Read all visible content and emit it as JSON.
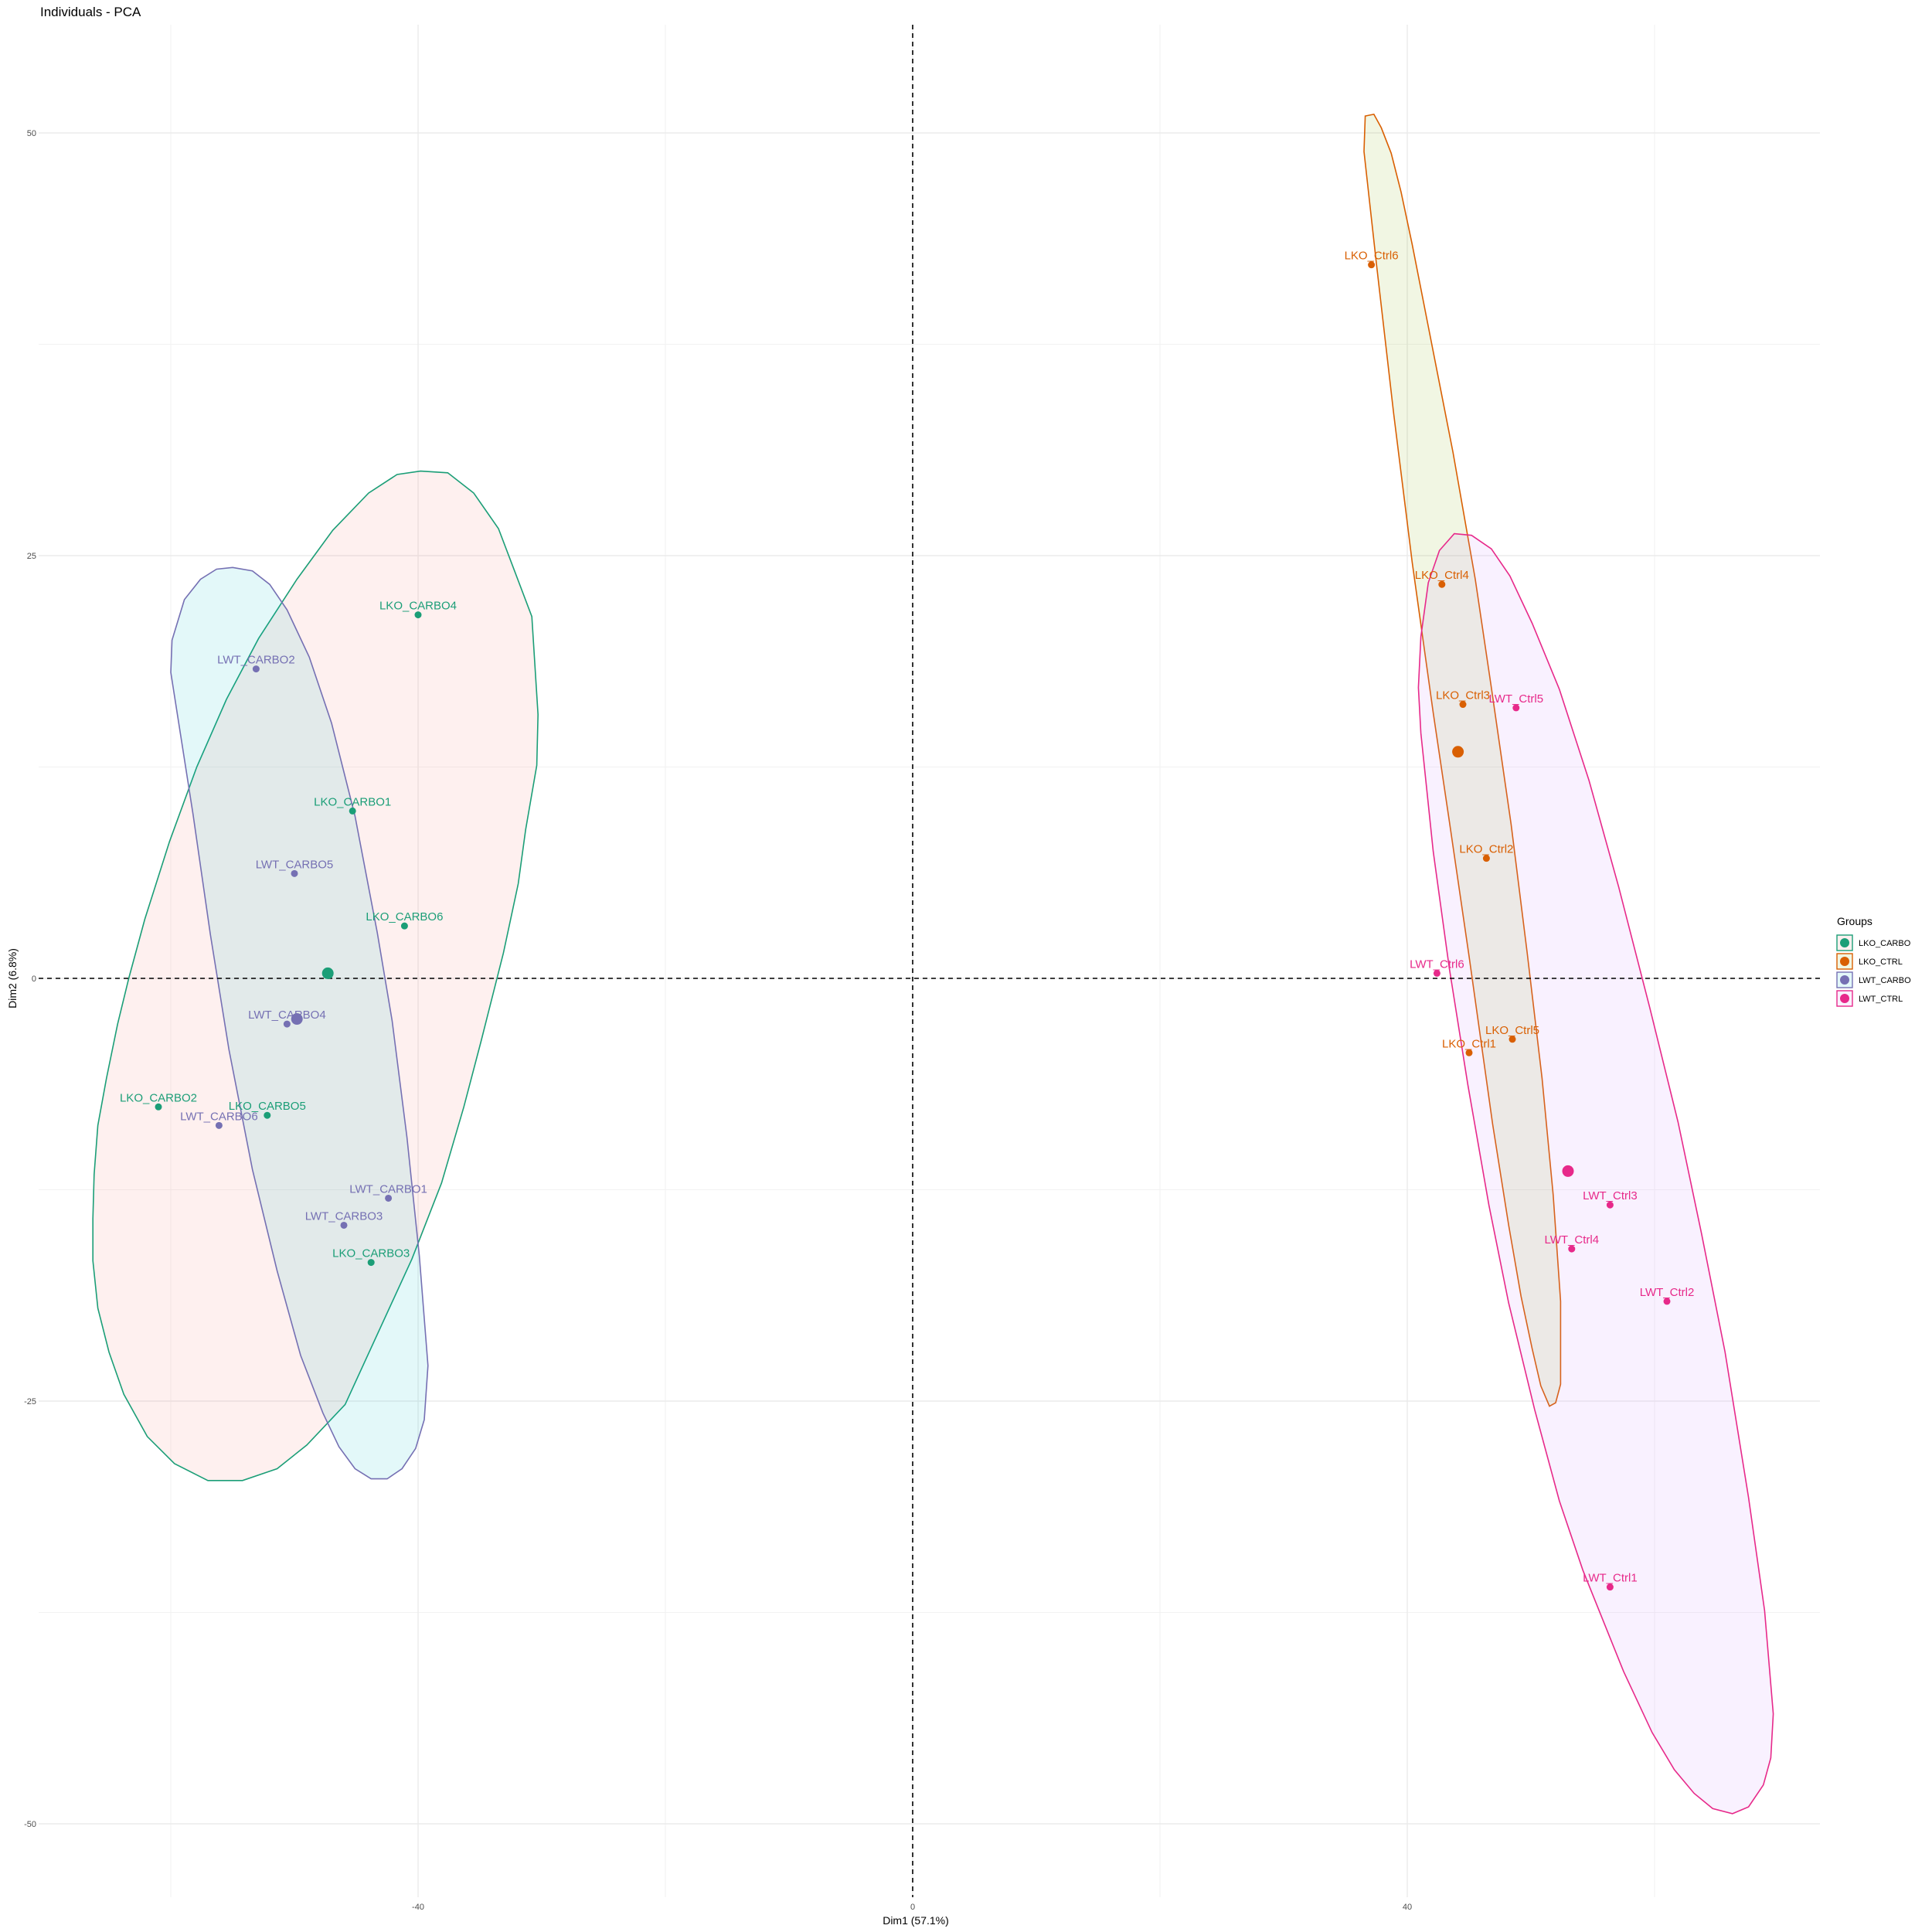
{
  "chart_data": {
    "type": "scatter",
    "title": "Individuals - PCA",
    "xlabel": "Dim1 (57.1%)",
    "ylabel": "Dim2 (6.8%)",
    "xlim": [
      -70,
      74
    ],
    "ylim": [
      -56,
      56
    ],
    "x_ticks": [
      -40,
      0,
      40
    ],
    "y_ticks": [
      50,
      25,
      0,
      -25,
      -50
    ],
    "x_tick_labels": [
      "-40",
      "0",
      "40"
    ],
    "y_tick_labels": [
      "50",
      "25",
      "0",
      "-25",
      "-50"
    ],
    "grid": true,
    "reference_lines": {
      "x": 0,
      "y": 0,
      "style": "dashed"
    },
    "legend": {
      "title": "Groups",
      "position": "right"
    },
    "series": [
      {
        "name": "LKO_CARBO",
        "color": "#1B9E77",
        "fill": "#F8766D",
        "points": [
          {
            "label": "LKO_CARBO4",
            "x": -40,
            "y": 21.5
          },
          {
            "label": "LKO_CARBO1",
            "x": -45.3,
            "y": 9.9
          },
          {
            "label": "LKO_CARBO6",
            "x": -41.1,
            "y": 3.1
          },
          {
            "label": "LKO_CARBO2",
            "x": -61,
            "y": -7.6
          },
          {
            "label": "LKO_CARBO5",
            "x": -52.2,
            "y": -8.1
          },
          {
            "label": "LKO_CARBO3",
            "x": -43.8,
            "y": -16.8
          }
        ],
        "centroid": {
          "x": -47.3,
          "y": 0.3
        },
        "ellipse": [
          [
            -39.8,
            30
          ],
          [
            -37.6,
            29.9
          ],
          [
            -35.5,
            28.7
          ],
          [
            -33.5,
            26.6
          ],
          [
            -32.2,
            24.1
          ],
          [
            -30.8,
            21.4
          ],
          [
            -30.3,
            15.6
          ],
          [
            -30.4,
            12.6
          ],
          [
            -31.3,
            8.8
          ],
          [
            -31.9,
            5.6
          ],
          [
            -33.1,
            1.5
          ],
          [
            -34.9,
            -3.7
          ],
          [
            -36.3,
            -7.6
          ],
          [
            -38.1,
            -12.1
          ],
          [
            -40.5,
            -16.6
          ],
          [
            -45.9,
            -25.2
          ],
          [
            -49,
            -27.6
          ],
          [
            -51.4,
            -29
          ],
          [
            -54.2,
            -29.7
          ],
          [
            -57,
            -29.7
          ],
          [
            -59.7,
            -28.7
          ],
          [
            -61.9,
            -27.1
          ],
          [
            -63.8,
            -24.6
          ],
          [
            -65,
            -22.1
          ],
          [
            -65.9,
            -19.5
          ],
          [
            -66.3,
            -16.7
          ],
          [
            -66.3,
            -14.2
          ],
          [
            -66.2,
            -11.6
          ],
          [
            -65.9,
            -8.7
          ],
          [
            -65.2,
            -5.9
          ],
          [
            -64.3,
            -2.7
          ],
          [
            -63.4,
            0
          ],
          [
            -62.1,
            3.5
          ],
          [
            -60.1,
            8.1
          ],
          [
            -57.9,
            12.5
          ],
          [
            -55.5,
            16.5
          ],
          [
            -52.9,
            20.1
          ],
          [
            -49.8,
            23.6
          ],
          [
            -46.9,
            26.5
          ],
          [
            -44,
            28.7
          ],
          [
            -41.7,
            29.8
          ]
        ]
      },
      {
        "name": "LKO_CTRL",
        "color": "#D95F02",
        "fill": "#7CAE00",
        "points": [
          {
            "label": "LKO_Ctrl6",
            "x": 37.1,
            "y": 42.2
          },
          {
            "label": "LKO_Ctrl4",
            "x": 42.8,
            "y": 23.3
          },
          {
            "label": "LKO_Ctrl3",
            "x": 44.5,
            "y": 16.2
          },
          {
            "label": "LKO_Ctrl2",
            "x": 46.4,
            "y": 7.1
          },
          {
            "label": "LKO_Ctrl5",
            "x": 48.5,
            "y": -3.6
          },
          {
            "label": "LKO_Ctrl1",
            "x": 45,
            "y": -4.4
          }
        ],
        "centroid": {
          "x": 44.1,
          "y": 13.4
        },
        "ellipse": [
          [
            36.6,
            51
          ],
          [
            37.3,
            51.1
          ],
          [
            37.9,
            50.3
          ],
          [
            38.7,
            48.8
          ],
          [
            39.5,
            46.5
          ],
          [
            40.4,
            43.4
          ],
          [
            41.5,
            39.3
          ],
          [
            43.7,
            31.1
          ],
          [
            45.5,
            23.6
          ],
          [
            46.8,
            17.2
          ],
          [
            48.4,
            9.1
          ],
          [
            49.7,
            1.5
          ],
          [
            50.9,
            -5.9
          ],
          [
            51.8,
            -12.8
          ],
          [
            52.4,
            -19.1
          ],
          [
            52.4,
            -24
          ],
          [
            52,
            -25.1
          ],
          [
            51.5,
            -25.3
          ],
          [
            50.8,
            -24.1
          ],
          [
            50.1,
            -21.9
          ],
          [
            49.2,
            -18.8
          ],
          [
            48.2,
            -14.6
          ],
          [
            46.9,
            -8.6
          ],
          [
            45,
            1.3
          ],
          [
            43.4,
            9.3
          ],
          [
            42.1,
            15.7
          ],
          [
            40.4,
            24.6
          ],
          [
            38.9,
            33.4
          ],
          [
            37.5,
            42.3
          ],
          [
            36.5,
            48.9
          ]
        ]
      },
      {
        "name": "LWT_CARBO",
        "color": "#7570B3",
        "fill": "#00BFC4",
        "points": [
          {
            "label": "LWT_CARBO2",
            "x": -53.1,
            "y": 18.3
          },
          {
            "label": "LWT_CARBO5",
            "x": -50,
            "y": 6.2
          },
          {
            "label": "LWT_CARBO4",
            "x": -50.6,
            "y": -2.7
          },
          {
            "label": "LWT_CARBO6",
            "x": -56.1,
            "y": -8.7
          },
          {
            "label": "LWT_CARBO1",
            "x": -42.4,
            "y": -13
          },
          {
            "label": "LWT_CARBO3",
            "x": -46,
            "y": -14.6
          }
        ],
        "centroid": {
          "x": -49.8,
          "y": -2.4
        },
        "ellipse": [
          [
            -55,
            24.3
          ],
          [
            -53.4,
            24.1
          ],
          [
            -52,
            23.3
          ],
          [
            -50.6,
            21.8
          ],
          [
            -48.8,
            19
          ],
          [
            -47,
            15.1
          ],
          [
            -45.1,
            9.6
          ],
          [
            -43.3,
            2.7
          ],
          [
            -42.1,
            -2.5
          ],
          [
            -40.9,
            -9.4
          ],
          [
            -39.9,
            -16.4
          ],
          [
            -39.2,
            -22.9
          ],
          [
            -39.5,
            -26.1
          ],
          [
            -40.2,
            -27.8
          ],
          [
            -41.3,
            -29
          ],
          [
            -42.5,
            -29.6
          ],
          [
            -43.8,
            -29.6
          ],
          [
            -45.1,
            -29
          ],
          [
            -46.4,
            -27.7
          ],
          [
            -47.7,
            -25.7
          ],
          [
            -49.5,
            -22.3
          ],
          [
            -51.4,
            -17.3
          ],
          [
            -53.4,
            -11.3
          ],
          [
            -55.3,
            -4.2
          ],
          [
            -56.8,
            2.6
          ],
          [
            -58.2,
            9.7
          ],
          [
            -60,
            18.1
          ],
          [
            -59.9,
            20
          ],
          [
            -58.9,
            22.4
          ],
          [
            -57.6,
            23.6
          ],
          [
            -56.3,
            24.2
          ]
        ]
      },
      {
        "name": "LWT_CTRL",
        "color": "#E7298A",
        "fill": "#C77CFF",
        "points": [
          {
            "label": "LWT_Ctrl5",
            "x": 48.8,
            "y": 16
          },
          {
            "label": "LWT_Ctrl6",
            "x": 42.4,
            "y": 0.3
          },
          {
            "label": "LWT_Ctrl3",
            "x": 56.4,
            "y": -13.4
          },
          {
            "label": "LWT_Ctrl4",
            "x": 53.3,
            "y": -16
          },
          {
            "label": "LWT_Ctrl2",
            "x": 61,
            "y": -19.1
          },
          {
            "label": "LWT_Ctrl1",
            "x": 56.4,
            "y": -36
          }
        ],
        "centroid": {
          "x": 53,
          "y": -11.4
        },
        "ellipse": [
          [
            43.8,
            26.3
          ],
          [
            45.2,
            26.2
          ],
          [
            46.8,
            25.4
          ],
          [
            48.3,
            23.8
          ],
          [
            50.1,
            21
          ],
          [
            52.3,
            17.1
          ],
          [
            54.7,
            11.7
          ],
          [
            57.1,
            5.4
          ],
          [
            59.6,
            -1.7
          ],
          [
            61.9,
            -8.5
          ],
          [
            63.8,
            -15.1
          ],
          [
            65.7,
            -22.1
          ],
          [
            67.6,
            -30.7
          ],
          [
            68.9,
            -37.4
          ],
          [
            69.6,
            -43.5
          ],
          [
            69.4,
            -46.1
          ],
          [
            68.8,
            -47.7
          ],
          [
            67.6,
            -49
          ],
          [
            66.3,
            -49.4
          ],
          [
            64.7,
            -49.1
          ],
          [
            63.2,
            -48.2
          ],
          [
            61.6,
            -46.8
          ],
          [
            59.8,
            -44.6
          ],
          [
            57.5,
            -41
          ],
          [
            54.2,
            -35
          ],
          [
            52.3,
            -30.9
          ],
          [
            50.3,
            -25.5
          ],
          [
            48.2,
            -19.2
          ],
          [
            46.6,
            -13.4
          ],
          [
            44.9,
            -6.3
          ],
          [
            43.4,
            0.6
          ],
          [
            42.1,
            7.5
          ],
          [
            41.1,
            14.5
          ],
          [
            40.9,
            17.2
          ],
          [
            41.1,
            20.2
          ],
          [
            41.7,
            23.4
          ],
          [
            42.6,
            25.3
          ]
        ]
      }
    ]
  }
}
